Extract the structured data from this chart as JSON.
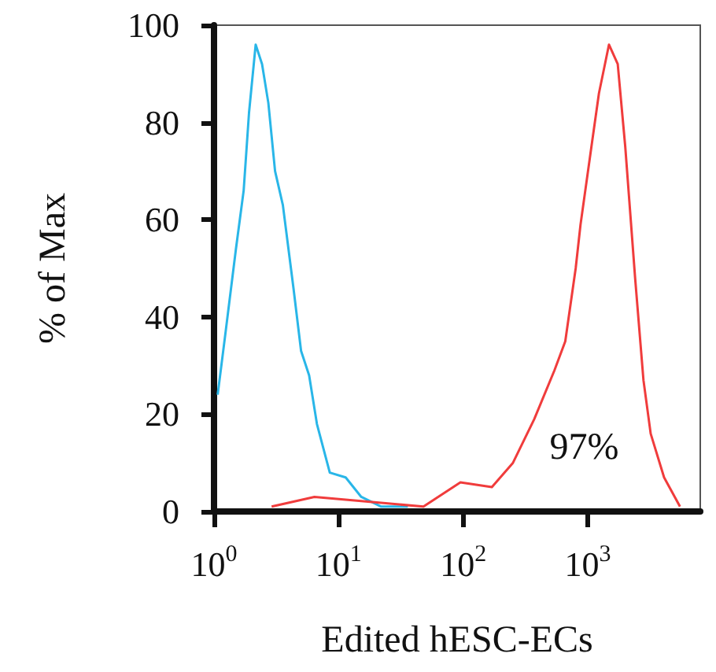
{
  "chart_data": {
    "type": "line",
    "xlabel": "Edited hESC-ECs",
    "ylabel": "% of Max",
    "log": "x",
    "xlim": [
      1,
      8000
    ],
    "xticks": [
      {
        "value": 1,
        "label": "10$^{0}$"
      },
      {
        "value": 10,
        "label": "10$^{1}$"
      },
      {
        "value": 100,
        "label": "10$^{2}$"
      },
      {
        "value": 1000,
        "label": "10$^{3}$"
      }
    ],
    "ylim": [
      0,
      100
    ],
    "yticks": [
      0,
      20,
      40,
      60,
      80,
      100
    ],
    "grid": false,
    "marker": "none",
    "line_style": "solid",
    "annotations": [
      "97%"
    ],
    "series": [
      {
        "color": "#29b6e8",
        "x": [
          1.07,
          1.24,
          1.5,
          1.73,
          1.91,
          2.16,
          2.43,
          2.73,
          3.09,
          3.57,
          4.34,
          5,
          5.8,
          6.7,
          8.5,
          11.4,
          15.2,
          22,
          36
        ],
        "values": [
          24,
          37,
          54,
          66,
          82,
          96,
          92,
          84,
          70,
          63,
          46,
          33,
          28,
          18,
          8,
          7,
          3,
          1,
          1
        ]
      },
      {
        "color": "#f03c3c",
        "x": [
          2.9,
          6.4,
          48,
          95,
          170,
          251,
          372,
          540,
          660,
          800,
          875,
          1070,
          1230,
          1480,
          1740,
          2000,
          2400,
          2800,
          3200,
          4100,
          5500
        ],
        "values": [
          1,
          3,
          1,
          6,
          5,
          10,
          19,
          29,
          35,
          50,
          59,
          75,
          86,
          96,
          92,
          75,
          48,
          27,
          16,
          7,
          1
        ]
      }
    ]
  }
}
